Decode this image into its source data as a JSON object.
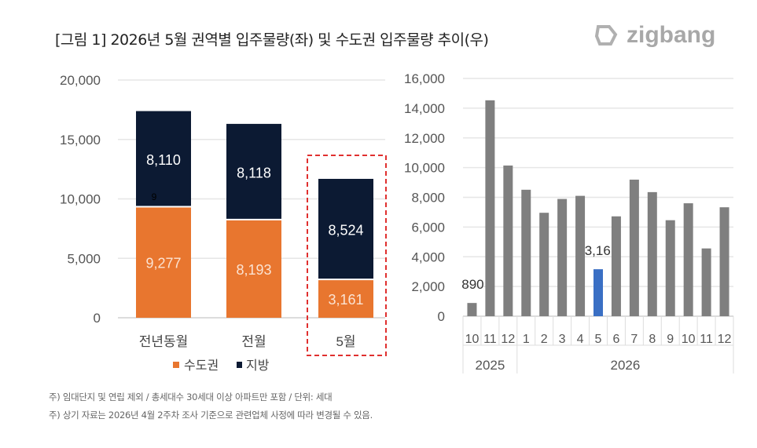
{
  "title": "[그림 1] 2026년 5월 권역별 입주물량(좌) 및 수도권 입주물량 추이(우)",
  "logo": "zigbang",
  "notes": [
    "주) 임대단지 및 연립 제외 / 총세대수 30세대 이상 아파트만 포함 / 단위: 세대",
    "주) 상기 자료는 2026년 4월 2주차 조사 기준으로 관련업체 사정에 따라 변경될 수 있음."
  ],
  "colors": {
    "capital": "#E8762F",
    "regional": "#0C1A33",
    "gray_bar": "#7F7F7F",
    "highlight_bar": "#3A6FC4",
    "highlight_box": "#E0302F"
  },
  "chart_data": [
    {
      "type": "bar",
      "stacked": true,
      "categories": [
        "전년동월",
        "전월",
        "5월"
      ],
      "series": [
        {
          "name": "수도권",
          "values": [
            9277,
            8193,
            3161
          ],
          "labels": [
            "9,277",
            "8,193",
            "3,161"
          ]
        },
        {
          "name": "지방",
          "values": [
            8110,
            8118,
            8524
          ],
          "labels": [
            "8,110",
            "8,118",
            "8,524"
          ]
        }
      ],
      "stray_label": "9",
      "ylim": [
        0,
        20000
      ],
      "yticks": [
        "0",
        "5,000",
        "10,000",
        "15,000",
        "20,000"
      ],
      "grid": true,
      "legend": "bottom",
      "highlight_category": "5월"
    },
    {
      "type": "bar",
      "categories": [
        "10",
        "11",
        "12",
        "1",
        "2",
        "3",
        "4",
        "5",
        "6",
        "7",
        "8",
        "9",
        "10",
        "11",
        "12"
      ],
      "groups": [
        {
          "label": "2025",
          "count": 3
        },
        {
          "label": "2026",
          "count": 12
        }
      ],
      "values": [
        890,
        14530,
        10140,
        8510,
        6960,
        7890,
        8100,
        3161,
        6720,
        9190,
        8350,
        6460,
        7600,
        4560,
        7330
      ],
      "data_labels": {
        "0": "890",
        "7": "3,161"
      },
      "highlight_index": 7,
      "ylim": [
        0,
        16000
      ],
      "yticks": [
        "0",
        "2,000",
        "4,000",
        "6,000",
        "8,000",
        "10,000",
        "12,000",
        "14,000",
        "16,000"
      ],
      "grid": true
    }
  ]
}
